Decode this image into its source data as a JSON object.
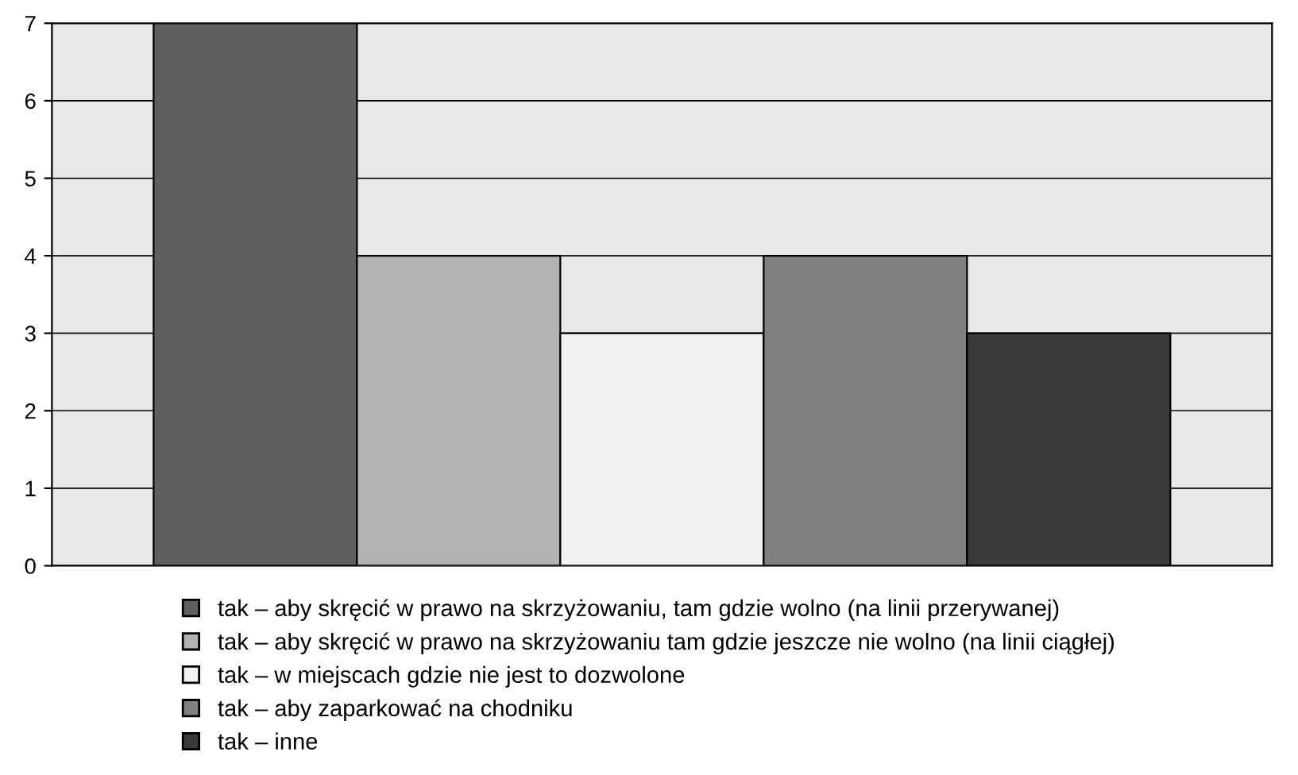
{
  "chart_data": {
    "type": "bar",
    "categories": [
      null
    ],
    "series": [
      {
        "name": "tak – aby skręcić w prawo na skrzyżowaniu, tam gdzie wolno (na linii przerywanej)",
        "color": "#5f5f5f",
        "values": [
          7
        ]
      },
      {
        "name": "tak – aby skręcić w prawo na skrzyżowaniu tam gdzie jeszcze nie wolno (na linii ciągłej)",
        "color": "#b2b2b2",
        "values": [
          4
        ]
      },
      {
        "name": "tak – w miejscach gdzie nie jest to dozwolone",
        "color": "#f2f2f2",
        "values": [
          3
        ]
      },
      {
        "name": "tak – aby zaparkować na chodniku",
        "color": "#808080",
        "values": [
          4
        ]
      },
      {
        "name": "tak – inne",
        "color": "#3a3a3a",
        "values": [
          3
        ]
      }
    ],
    "ylim": [
      0,
      7
    ],
    "yticks": [
      0,
      1,
      2,
      3,
      4,
      5,
      6,
      7
    ],
    "grid": "y",
    "legend": "bottom"
  }
}
